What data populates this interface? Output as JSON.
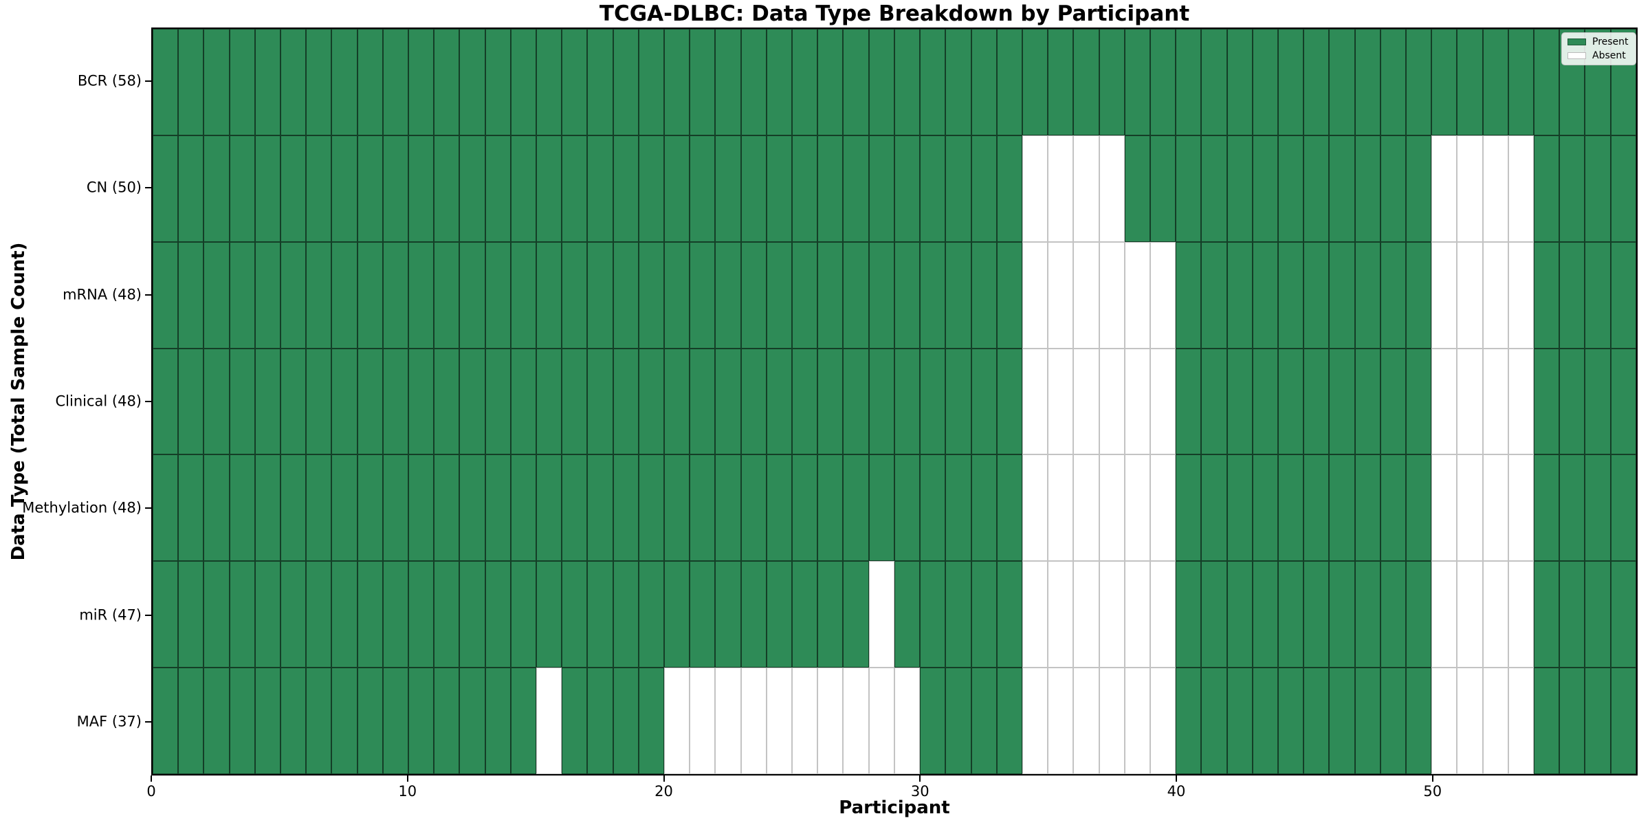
{
  "figure": {
    "title": "TCGA-DLBC: Data Type Breakdown by Participant",
    "xlabel": "Participant",
    "ylabel": "Data Type (Total Sample Count)"
  },
  "legend": {
    "position": "upper right",
    "items": [
      {
        "label": "Present",
        "color": "#2e8b57"
      },
      {
        "label": "Absent",
        "color": "#ffffff"
      }
    ]
  },
  "colors": {
    "present": "#2e8b57",
    "absent": "#ffffff",
    "present_edge": "rgba(0,0,0,0.55)",
    "absent_edge": "#c3c3c3",
    "spine": "#000000"
  },
  "chart_data": {
    "type": "heatmap",
    "title": "TCGA-DLBC: Data Type Breakdown by Participant",
    "xlabel": "Participant",
    "ylabel": "Data Type (Total Sample Count)",
    "n_participants": 58,
    "xlim": [
      0,
      58
    ],
    "x_ticks": [
      0,
      10,
      20,
      30,
      40,
      50
    ],
    "grid": true,
    "legend_position": "upper right",
    "cell_values": {
      "present_label": "Present",
      "absent_label": "Absent"
    },
    "rows": [
      {
        "label": "BCR (58)",
        "data_type": "BCR",
        "present_count": 58,
        "absent_participants": []
      },
      {
        "label": "CN (50)",
        "data_type": "CN",
        "present_count": 50,
        "absent_participants": [
          34,
          35,
          36,
          37,
          50,
          51,
          52,
          53
        ]
      },
      {
        "label": "mRNA (48)",
        "data_type": "mRNA",
        "present_count": 48,
        "absent_participants": [
          34,
          35,
          36,
          37,
          38,
          39,
          50,
          51,
          52,
          53
        ]
      },
      {
        "label": "Clinical (48)",
        "data_type": "Clinical",
        "present_count": 48,
        "absent_participants": [
          34,
          35,
          36,
          37,
          38,
          39,
          50,
          51,
          52,
          53
        ]
      },
      {
        "label": "Methylation (48)",
        "data_type": "Methylation",
        "present_count": 48,
        "absent_participants": [
          34,
          35,
          36,
          37,
          38,
          39,
          50,
          51,
          52,
          53
        ]
      },
      {
        "label": "miR (47)",
        "data_type": "miR",
        "present_count": 47,
        "absent_participants": [
          28,
          34,
          35,
          36,
          37,
          38,
          39,
          50,
          51,
          52,
          53
        ]
      },
      {
        "label": "MAF (37)",
        "data_type": "MAF",
        "present_count": 37,
        "absent_participants": [
          15,
          20,
          21,
          22,
          23,
          24,
          25,
          26,
          27,
          28,
          29,
          34,
          35,
          36,
          37,
          38,
          39,
          50,
          51,
          52,
          53
        ]
      }
    ]
  }
}
